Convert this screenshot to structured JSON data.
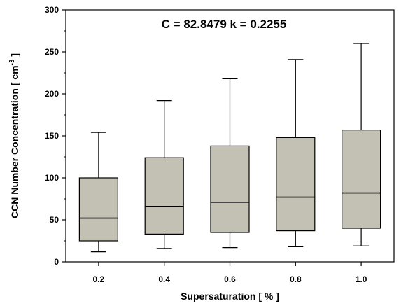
{
  "chart_data": {
    "type": "box",
    "annotation": "C = 82.8479  k = 0.2255",
    "xlabel": "Supersaturation [ % ]",
    "ylabel": {
      "prefix": "CCN Number Concentration [ cm",
      "superscript": "-3",
      "suffix": " ]"
    },
    "ylim": [
      0,
      300
    ],
    "yticks": [
      0,
      50,
      100,
      150,
      200,
      250,
      300
    ],
    "grid": false,
    "categories": [
      "0.2",
      "0.4",
      "0.6",
      "0.8",
      "1.0"
    ],
    "boxes": [
      {
        "category": "0.2",
        "whisker_low": 12,
        "q1": 25,
        "median": 52,
        "q3": 100,
        "whisker_high": 154
      },
      {
        "category": "0.4",
        "whisker_low": 16,
        "q1": 33,
        "median": 66,
        "q3": 124,
        "whisker_high": 192
      },
      {
        "category": "0.6",
        "whisker_low": 17,
        "q1": 35,
        "median": 71,
        "q3": 138,
        "whisker_high": 218
      },
      {
        "category": "0.8",
        "whisker_low": 18,
        "q1": 37,
        "median": 77,
        "q3": 148,
        "whisker_high": 241
      },
      {
        "category": "1.0",
        "whisker_low": 19,
        "q1": 40,
        "median": 82,
        "q3": 157,
        "whisker_high": 260
      }
    ],
    "colors": {
      "box_fill": "#c2c1b3",
      "line": "#000000"
    }
  }
}
